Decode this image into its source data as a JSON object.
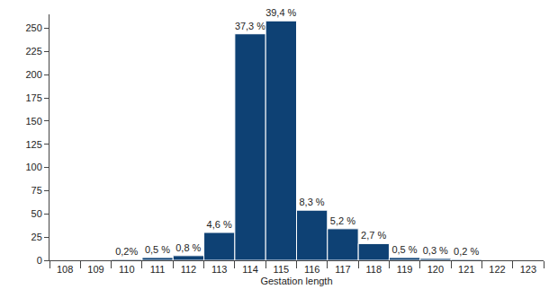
{
  "chart_data": {
    "type": "bar",
    "x_label": "Gestation length",
    "categories": [
      "108",
      "109",
      "110",
      "111",
      "112",
      "113",
      "114",
      "115",
      "116",
      "117",
      "118",
      "119",
      "120",
      "121",
      "122",
      "123"
    ],
    "values": [
      0,
      0,
      1,
      3,
      5,
      30,
      244,
      258,
      54,
      34,
      18,
      3,
      2,
      1,
      0,
      0
    ],
    "percent_labels": [
      null,
      null,
      "0,2%",
      "0,5 %",
      "0,8 %",
      "4,6 %",
      "37,3 %",
      "39,4 %",
      "8,3 %",
      "5,2 %",
      "2,7 %",
      "0,5 %",
      "0,3 %",
      "0,2 %",
      null,
      null
    ],
    "color": "#0e4174",
    "ylim": [
      0,
      265
    ],
    "yticks": [
      0,
      25,
      50,
      75,
      100,
      125,
      150,
      175,
      200,
      225,
      250
    ],
    "grid": false
  }
}
